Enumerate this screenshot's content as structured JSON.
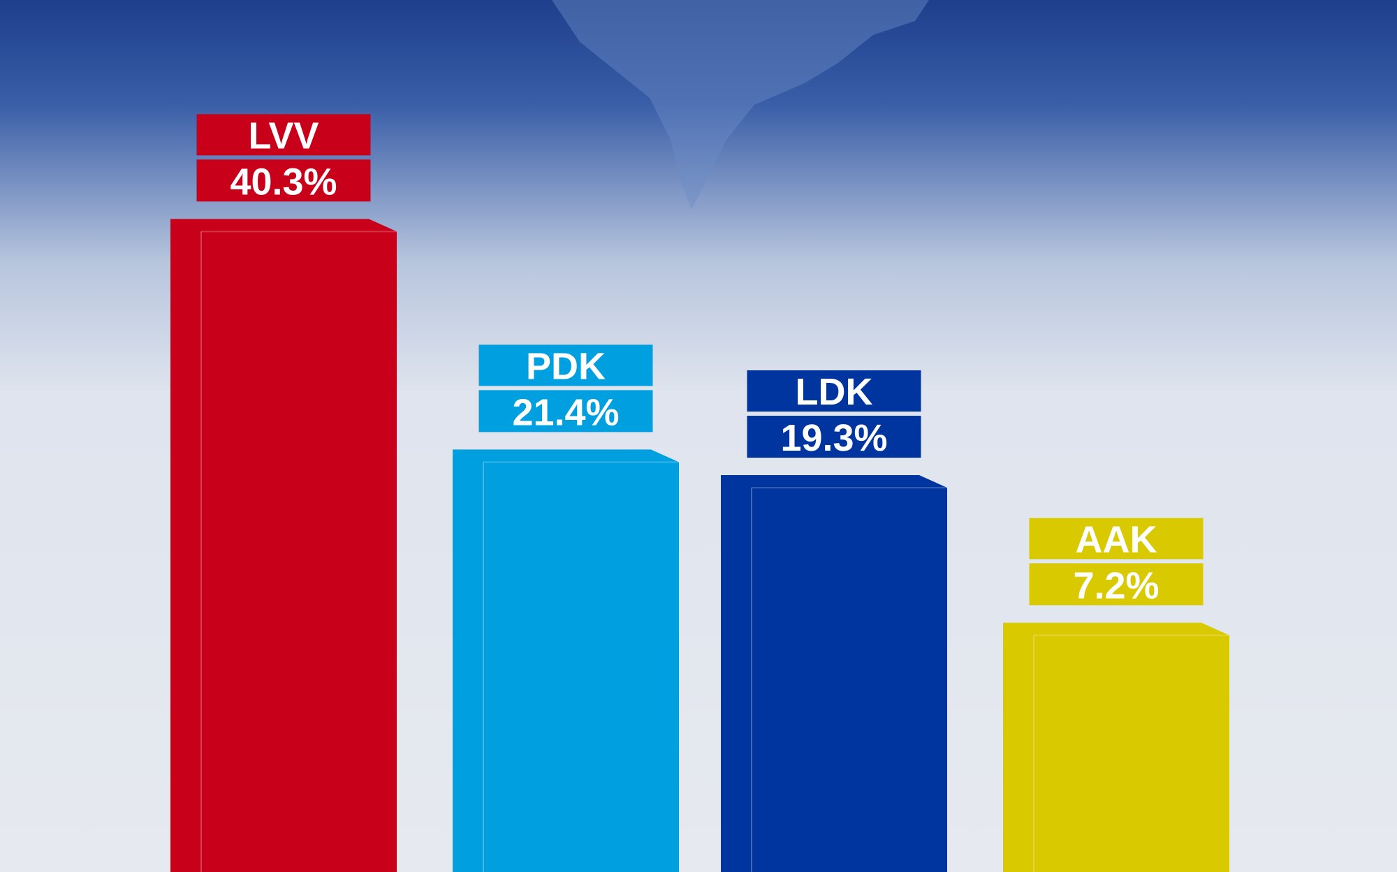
{
  "chart_data": {
    "type": "bar",
    "categories": [
      "LVV",
      "PDK",
      "LDK",
      "AAK"
    ],
    "values": [
      40.3,
      21.4,
      19.3,
      7.2
    ],
    "value_labels": [
      "40.3%",
      "21.4%",
      "19.3%",
      "7.2%"
    ],
    "colors": [
      "#c8001a",
      "#00a0e0",
      "#0035a0",
      "#d9c900"
    ]
  }
}
